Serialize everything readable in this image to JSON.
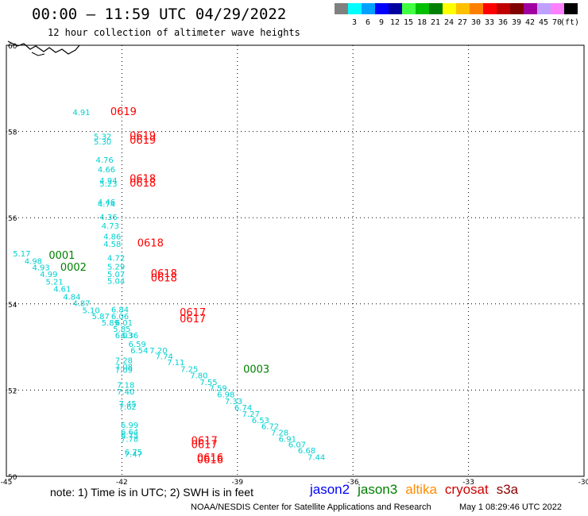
{
  "header": {
    "title": "00:00 — 11:59 UTC 04/29/2022",
    "subtitle": "12 hour collection of altimeter wave heights"
  },
  "color_scale": {
    "unit": "(ft)",
    "swatches": [
      {
        "color": "#808080",
        "label": ""
      },
      {
        "color": "#00ffff",
        "label": "3"
      },
      {
        "color": "#00a0ff",
        "label": "6"
      },
      {
        "color": "#0000ff",
        "label": "9"
      },
      {
        "color": "#0000a0",
        "label": "12"
      },
      {
        "color": "#40ff40",
        "label": "15"
      },
      {
        "color": "#00c000",
        "label": "18"
      },
      {
        "color": "#008000",
        "label": "21"
      },
      {
        "color": "#ffff00",
        "label": "24"
      },
      {
        "color": "#ffc000",
        "label": "27"
      },
      {
        "color": "#ff8000",
        "label": "30"
      },
      {
        "color": "#ff0000",
        "label": "33"
      },
      {
        "color": "#c00000",
        "label": "36"
      },
      {
        "color": "#800000",
        "label": "39"
      },
      {
        "color": "#a000a0",
        "label": "42"
      },
      {
        "color": "#c0a0ff",
        "label": "45"
      },
      {
        "color": "#ff80ff",
        "label": "70"
      },
      {
        "color": "#000000",
        "label": ""
      }
    ]
  },
  "footer": {
    "note": "note: 1) Time is in UTC; 2) SWH is in feet",
    "credit": "NOAA/NESDIS Center for Satellite Applications and Research",
    "timestamp": "May  1 08:29:46 UTC 2022",
    "satellites": [
      {
        "name": "jason2",
        "color": "#0000ff"
      },
      {
        "name": "jason3",
        "color": "#008000"
      },
      {
        "name": "altika",
        "color": "#ff8c00"
      },
      {
        "name": "cryosat",
        "color": "#d00000"
      },
      {
        "name": "s3a",
        "color": "#8b0000"
      }
    ]
  },
  "chart_data": {
    "type": "scatter",
    "x_ticks": [
      "-45",
      "-42",
      "-39",
      "-36",
      "-33",
      "-30"
    ],
    "y_ticks": [
      "60",
      "58",
      "56",
      "54",
      "52",
      "50"
    ],
    "xlim": [
      -45,
      -30
    ],
    "ylim": [
      50,
      60
    ],
    "grid": true,
    "wave_color": "#00d0d0",
    "time_colors": {
      "jason3": "#008000",
      "cryosat": "#ff0000"
    },
    "wave_heights": [
      {
        "lon": -43.05,
        "lat": 58.38,
        "v": "4.91"
      },
      {
        "lon": -42.5,
        "lat": 57.82,
        "v": "5.32"
      },
      {
        "lon": -42.5,
        "lat": 57.7,
        "v": "5.30"
      },
      {
        "lon": -42.45,
        "lat": 57.27,
        "v": "4.76"
      },
      {
        "lon": -42.4,
        "lat": 57.05,
        "v": "4.66"
      },
      {
        "lon": -42.35,
        "lat": 56.8,
        "v": "4.94"
      },
      {
        "lon": -42.35,
        "lat": 56.72,
        "v": "5.23"
      },
      {
        "lon": -42.4,
        "lat": 56.3,
        "v": "4.46"
      },
      {
        "lon": -42.4,
        "lat": 56.25,
        "v": "4.74"
      },
      {
        "lon": -42.35,
        "lat": 55.95,
        "v": "4.36"
      },
      {
        "lon": -42.3,
        "lat": 55.75,
        "v": "4.73"
      },
      {
        "lon": -42.25,
        "lat": 55.5,
        "v": "4.86"
      },
      {
        "lon": -42.25,
        "lat": 55.32,
        "v": "4.58"
      },
      {
        "lon": -42.15,
        "lat": 55.0,
        "v": "4.72"
      },
      {
        "lon": -42.15,
        "lat": 54.8,
        "v": "5.29"
      },
      {
        "lon": -42.15,
        "lat": 54.62,
        "v": "5.07"
      },
      {
        "lon": -42.15,
        "lat": 54.47,
        "v": "5.04"
      },
      {
        "lon": -44.6,
        "lat": 55.1,
        "v": "5.17"
      },
      {
        "lon": -44.3,
        "lat": 54.93,
        "v": "4.98"
      },
      {
        "lon": -44.1,
        "lat": 54.78,
        "v": "4.93"
      },
      {
        "lon": -43.9,
        "lat": 54.62,
        "v": "4.99"
      },
      {
        "lon": -43.75,
        "lat": 54.45,
        "v": "5.21"
      },
      {
        "lon": -43.55,
        "lat": 54.28,
        "v": "4.61"
      },
      {
        "lon": -43.3,
        "lat": 54.1,
        "v": "4.84"
      },
      {
        "lon": -43.05,
        "lat": 53.95,
        "v": "4.87"
      },
      {
        "lon": -42.8,
        "lat": 53.78,
        "v": "5.10"
      },
      {
        "lon": -42.55,
        "lat": 53.65,
        "v": "5.87"
      },
      {
        "lon": -42.05,
        "lat": 53.8,
        "v": "6.84"
      },
      {
        "lon": -42.05,
        "lat": 53.65,
        "v": "6.06"
      },
      {
        "lon": -42.3,
        "lat": 53.5,
        "v": "5.89"
      },
      {
        "lon": -41.95,
        "lat": 53.5,
        "v": "6.01"
      },
      {
        "lon": -42.0,
        "lat": 53.35,
        "v": "5.85"
      },
      {
        "lon": -41.8,
        "lat": 53.2,
        "v": "6.36"
      },
      {
        "lon": -41.95,
        "lat": 53.2,
        "v": "6.03"
      },
      {
        "lon": -41.6,
        "lat": 53.0,
        "v": "6.59"
      },
      {
        "lon": -41.55,
        "lat": 52.85,
        "v": "6.54"
      },
      {
        "lon": -41.05,
        "lat": 52.85,
        "v": "7.20"
      },
      {
        "lon": -40.9,
        "lat": 52.72,
        "v": "7.74"
      },
      {
        "lon": -41.95,
        "lat": 52.62,
        "v": "7.28"
      },
      {
        "lon": -40.6,
        "lat": 52.58,
        "v": "7.11"
      },
      {
        "lon": -41.95,
        "lat": 52.48,
        "v": "7.08"
      },
      {
        "lon": -41.95,
        "lat": 52.4,
        "v": "7.09"
      },
      {
        "lon": -40.25,
        "lat": 52.42,
        "v": "7.25"
      },
      {
        "lon": -40.0,
        "lat": 52.27,
        "v": "7.80"
      },
      {
        "lon": -39.75,
        "lat": 52.12,
        "v": "7.55"
      },
      {
        "lon": -41.9,
        "lat": 52.05,
        "v": "7.18"
      },
      {
        "lon": -39.5,
        "lat": 51.98,
        "v": "7.59"
      },
      {
        "lon": -41.9,
        "lat": 51.9,
        "v": "7.40"
      },
      {
        "lon": -39.3,
        "lat": 51.83,
        "v": "6.98"
      },
      {
        "lon": -39.1,
        "lat": 51.68,
        "v": "7.33"
      },
      {
        "lon": -41.85,
        "lat": 51.62,
        "v": "7.45"
      },
      {
        "lon": -38.85,
        "lat": 51.53,
        "v": "6.74"
      },
      {
        "lon": -41.85,
        "lat": 51.55,
        "v": "7.62"
      },
      {
        "lon": -38.65,
        "lat": 51.38,
        "v": "7.27"
      },
      {
        "lon": -38.4,
        "lat": 51.23,
        "v": "6.53"
      },
      {
        "lon": -41.8,
        "lat": 51.12,
        "v": "6.99"
      },
      {
        "lon": -38.15,
        "lat": 51.1,
        "v": "6.72"
      },
      {
        "lon": -41.8,
        "lat": 50.97,
        "v": "6.64"
      },
      {
        "lon": -37.9,
        "lat": 50.95,
        "v": "7.28"
      },
      {
        "lon": -41.8,
        "lat": 50.88,
        "v": "6.75"
      },
      {
        "lon": -41.8,
        "lat": 50.8,
        "v": "7.78"
      },
      {
        "lon": -37.7,
        "lat": 50.8,
        "v": "6.91"
      },
      {
        "lon": -37.45,
        "lat": 50.67,
        "v": "6.07"
      },
      {
        "lon": -37.2,
        "lat": 50.53,
        "v": "6.68"
      },
      {
        "lon": -41.7,
        "lat": 50.5,
        "v": "6.75"
      },
      {
        "lon": -41.7,
        "lat": 50.45,
        "v": "7.47"
      },
      {
        "lon": -36.95,
        "lat": 50.38,
        "v": "7.44"
      }
    ],
    "time_labels": [
      {
        "sat": "cryosat",
        "lon": -42.3,
        "lat": 58.38,
        "v": "0619"
      },
      {
        "sat": "cryosat",
        "lon": -41.8,
        "lat": 57.82,
        "v": "0619"
      },
      {
        "sat": "cryosat",
        "lon": -41.8,
        "lat": 57.72,
        "v": "0619"
      },
      {
        "sat": "cryosat",
        "lon": -41.8,
        "lat": 56.82,
        "v": "0618"
      },
      {
        "sat": "cryosat",
        "lon": -41.8,
        "lat": 56.72,
        "v": "0618"
      },
      {
        "sat": "cryosat",
        "lon": -41.6,
        "lat": 55.33,
        "v": "0618"
      },
      {
        "sat": "cryosat",
        "lon": -41.25,
        "lat": 54.62,
        "v": "0618"
      },
      {
        "sat": "cryosat",
        "lon": -41.25,
        "lat": 54.52,
        "v": "0618"
      },
      {
        "sat": "cryosat",
        "lon": -40.5,
        "lat": 53.72,
        "v": "0617"
      },
      {
        "sat": "cryosat",
        "lon": -40.5,
        "lat": 53.57,
        "v": "0617"
      },
      {
        "sat": "cryosat",
        "lon": -40.2,
        "lat": 50.75,
        "v": "0617"
      },
      {
        "sat": "cryosat",
        "lon": -40.2,
        "lat": 50.65,
        "v": "0617"
      },
      {
        "sat": "cryosat",
        "lon": -40.05,
        "lat": 50.35,
        "v": "0616"
      },
      {
        "sat": "cryosat",
        "lon": -40.05,
        "lat": 50.3,
        "v": "0616"
      },
      {
        "sat": "jason3",
        "lon": -43.9,
        "lat": 55.05,
        "v": "0001"
      },
      {
        "sat": "jason3",
        "lon": -43.6,
        "lat": 54.77,
        "v": "0002"
      },
      {
        "sat": "jason3",
        "lon": -38.85,
        "lat": 52.4,
        "v": "0003"
      }
    ]
  }
}
